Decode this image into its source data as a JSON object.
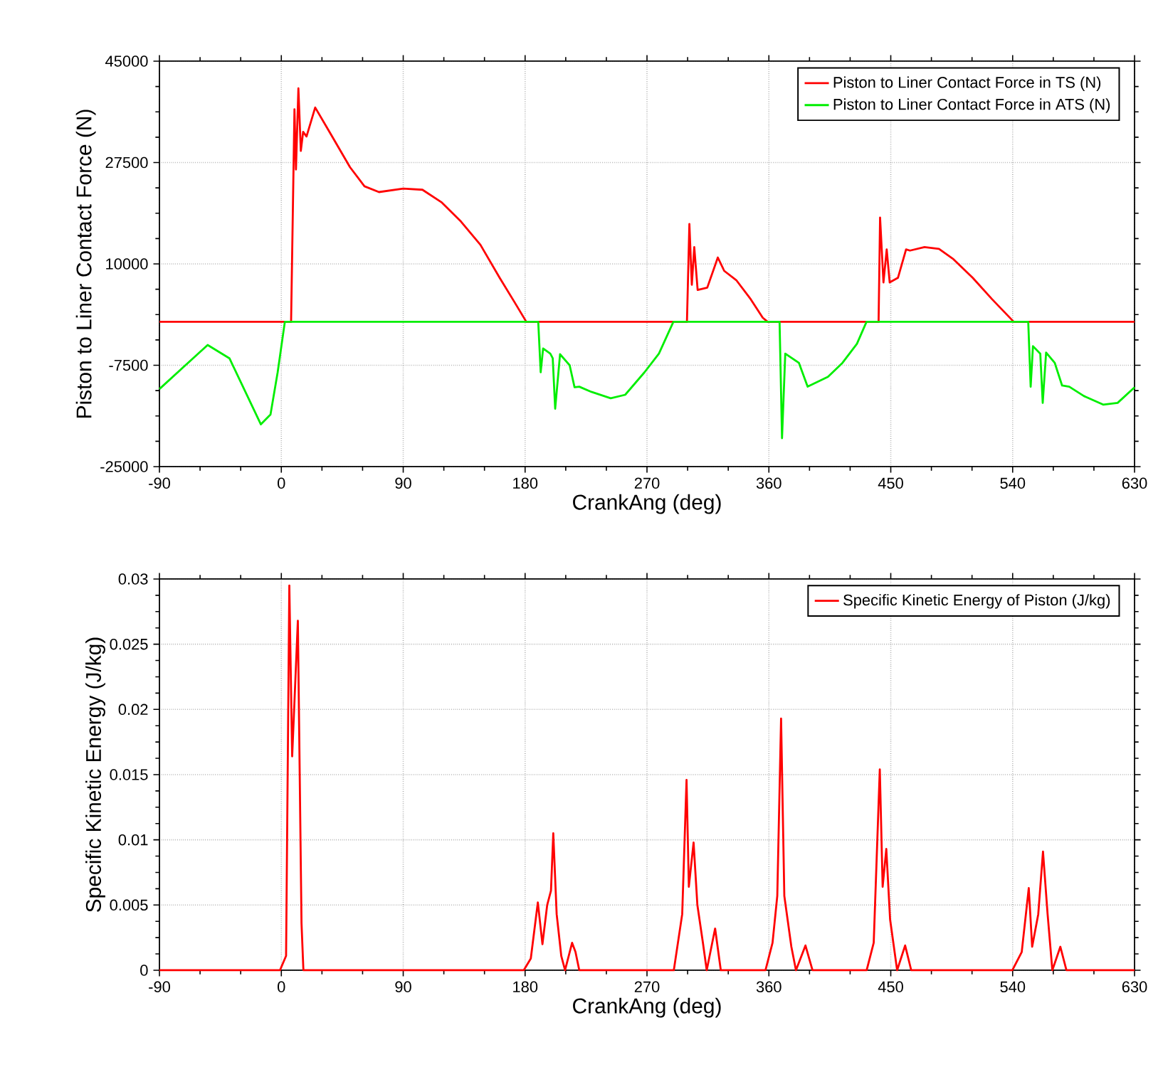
{
  "chart_data": [
    {
      "type": "line",
      "xlabel": "CrankAng (deg)",
      "ylabel": "Piston to Liner Contact Force (N)",
      "xlim": [
        -90,
        630
      ],
      "xticks": [
        -90,
        0,
        90,
        180,
        270,
        360,
        450,
        540,
        630
      ],
      "ylim": [
        -25000,
        45000
      ],
      "yticks": [
        -25000,
        -7500,
        10000,
        27500,
        45000
      ],
      "grid": true,
      "legend": "top right",
      "series": [
        {
          "name": "Piston to Liner Contact Force in TS (N)",
          "color": "#ff0000",
          "x": [
            -90,
            7.2,
            9.7,
            10.8,
            12.6,
            14.4,
            16.1,
            18.6,
            25,
            36.5,
            50.7,
            61.4,
            72.1,
            90,
            104.2,
            118.5,
            132.7,
            147,
            161.2,
            171.9,
            180.9,
            299.5,
            301.3,
            303.1,
            304.9,
            307.4,
            314.5,
            322.3,
            327,
            335.9,
            346.6,
            355.5,
            359.1,
            441,
            442.1,
            444.6,
            447,
            449.2,
            455.3,
            461.3,
            464.2,
            474.9,
            485.6,
            496.3,
            510.5,
            524.8,
            540.8,
            630
          ],
          "values": [
            0,
            0,
            36700,
            26300,
            40300,
            29500,
            32800,
            32000,
            37000,
            32400,
            26700,
            23400,
            22400,
            23000,
            22800,
            20600,
            17300,
            13300,
            7600,
            3500,
            0,
            0,
            16900,
            6400,
            12900,
            5500,
            5900,
            11100,
            8800,
            7200,
            3900,
            700,
            0,
            0,
            18000,
            6800,
            12500,
            6800,
            7600,
            12500,
            12300,
            12900,
            12600,
            10800,
            7600,
            3900,
            0,
            0
          ]
        },
        {
          "name": "Piston to Liner Contact Force in  ATS (N)",
          "color": "#00ee00",
          "x": [
            -90,
            -54.4,
            -38.3,
            -15.1,
            -8,
            -2.7,
            2.6,
            189.7,
            191.5,
            193.3,
            198.6,
            200.4,
            202.2,
            205.8,
            212.9,
            216.5,
            220,
            229,
            243.2,
            253.9,
            268.2,
            278.8,
            289.5,
            367.9,
            369.7,
            372.1,
            382.2,
            388.6,
            403.6,
            414.3,
            425,
            432.1,
            551.5,
            553.3,
            555,
            560.4,
            562.2,
            564.7,
            571.1,
            576.5,
            581.8,
            592.5,
            606.8,
            617.5,
            630
          ],
          "values": [
            -11600,
            -4000,
            -6300,
            -17700,
            -16000,
            -8700,
            0,
            0,
            -8700,
            -4600,
            -5500,
            -6300,
            -15000,
            -5600,
            -7500,
            -11300,
            -11200,
            -12100,
            -13200,
            -12600,
            -8700,
            -5500,
            0,
            0,
            -20100,
            -5500,
            -7100,
            -11200,
            -9500,
            -7100,
            -3800,
            0,
            0,
            -11200,
            -4200,
            -5500,
            -14000,
            -5300,
            -7100,
            -11000,
            -11200,
            -12800,
            -14300,
            -14000,
            -11300
          ]
        }
      ]
    },
    {
      "type": "line",
      "xlabel": "CrankAng (deg)",
      "ylabel": "Specific Kinetic Energy (J/kg)",
      "xlim": [
        -90,
        630
      ],
      "xticks": [
        -90,
        0,
        90,
        180,
        270,
        360,
        450,
        540,
        630
      ],
      "ylim": [
        0,
        0.03
      ],
      "yticks": [
        0,
        0.005,
        0.01,
        0.015,
        0.02,
        0.025,
        0.03
      ],
      "grid": true,
      "legend": "top right",
      "series": [
        {
          "name": "Specific Kinetic Energy of Piston (J/kg)",
          "color": "#ff0000",
          "x": [
            -90,
            -1,
            3.5,
            5.9,
            8,
            12.2,
            14.9,
            16.3,
            179,
            184.2,
            189.4,
            192.8,
            196.3,
            199.1,
            200.8,
            203.3,
            206.7,
            209.5,
            214.7,
            217.2,
            220,
            289.8,
            296,
            299.2,
            300.9,
            304.4,
            307.2,
            311.3,
            314.1,
            320.3,
            324.5,
            357.5,
            362.7,
            366.2,
            369,
            371.4,
            376.6,
            380,
            387,
            392.2,
            432.2,
            437.4,
            441.9,
            444,
            446.7,
            449.5,
            454.7,
            460.6,
            465.1,
            539.8,
            546.7,
            551.9,
            554.4,
            558.9,
            562.4,
            565.8,
            569.3,
            575.2,
            579.7,
            630
          ],
          "values": [
            0,
            0,
            0.0011,
            0.0295,
            0.0164,
            0.0268,
            0.0036,
            0,
            0,
            0.0009,
            0.0052,
            0.002,
            0.005,
            0.0061,
            0.0105,
            0.0043,
            0.0011,
            0,
            0.0021,
            0.0014,
            0,
            0,
            0.0043,
            0.0146,
            0.0064,
            0.0098,
            0.005,
            0.0021,
            0,
            0.0032,
            0,
            0,
            0.0021,
            0.0057,
            0.0193,
            0.0057,
            0.0018,
            0,
            0.0019,
            0,
            0,
            0.0021,
            0.0154,
            0.0064,
            0.0093,
            0.0039,
            0,
            0.0019,
            0,
            0,
            0.0014,
            0.0063,
            0.0018,
            0.0043,
            0.0091,
            0.0043,
            0,
            0.0018,
            0,
            0
          ]
        }
      ]
    }
  ]
}
